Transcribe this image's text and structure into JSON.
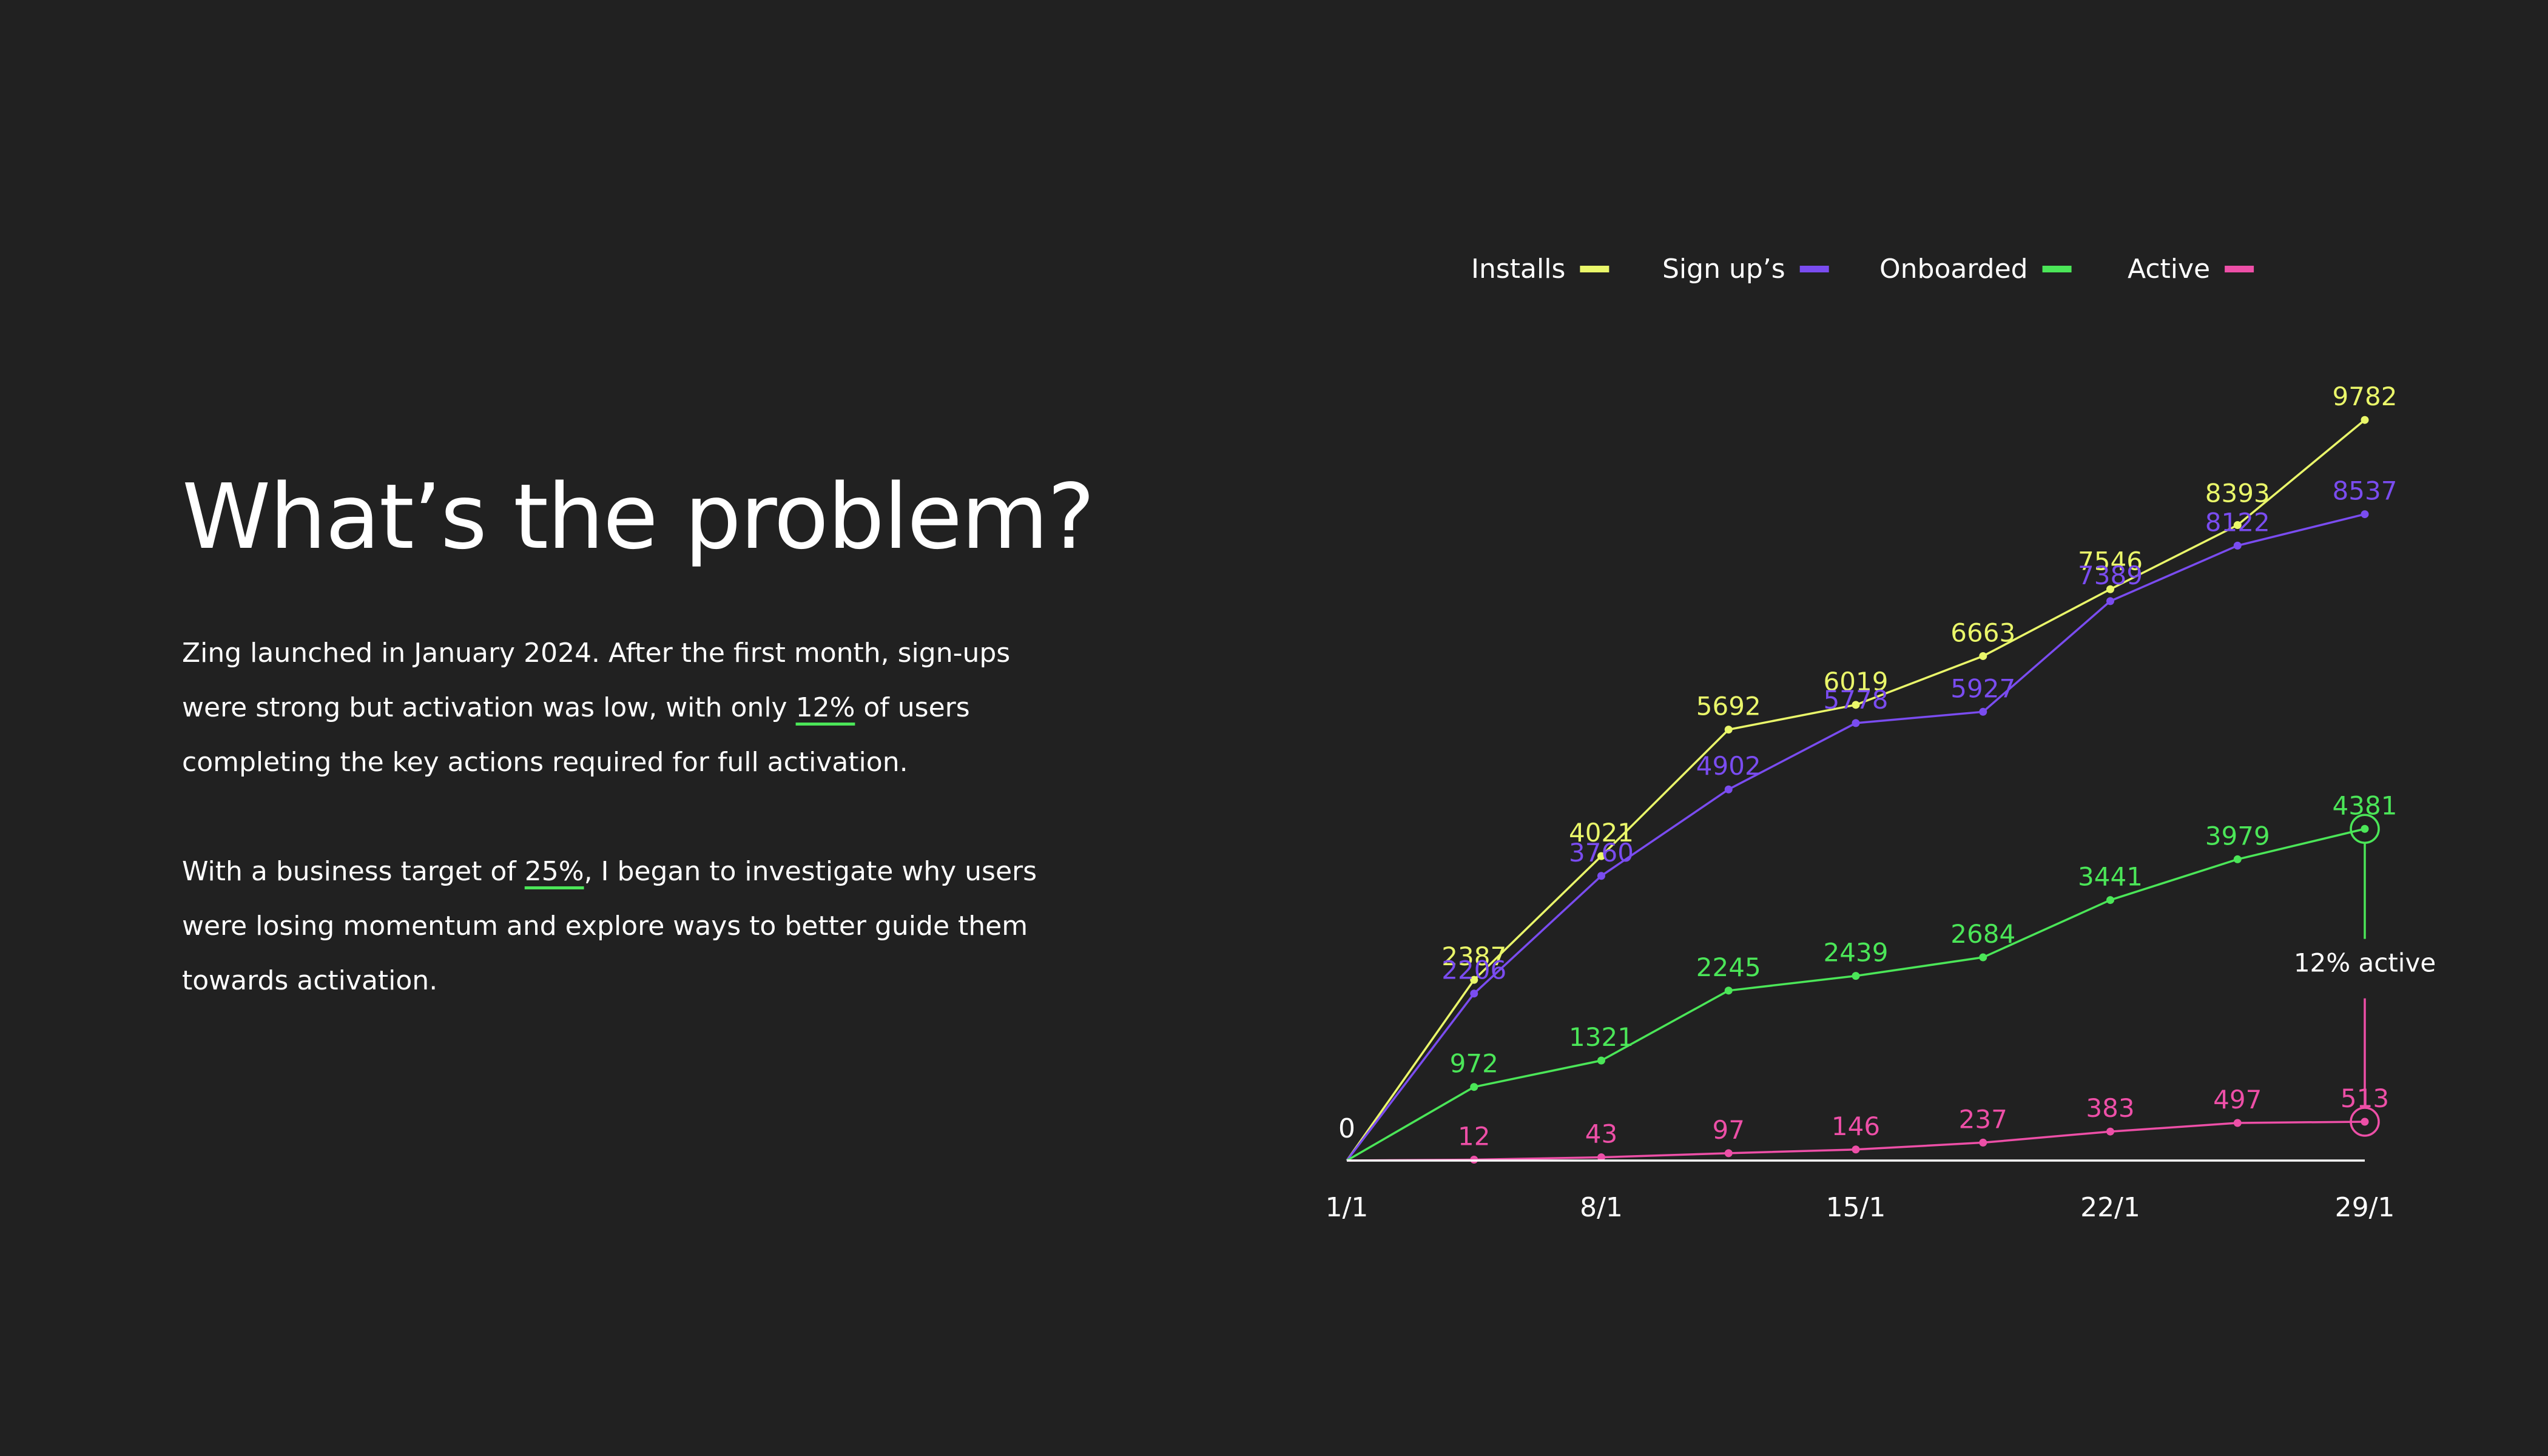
{
  "heading": "What’s the problem?",
  "paragraph1": {
    "before": "Zing launched in January 2024. After the first month, sign-ups were strong but activation was low, with only ",
    "highlight": "12%",
    "after": " of users completing the key actions required for full activation."
  },
  "paragraph2": {
    "before": "With a business target of ",
    "highlight": "25%",
    "after": ", I began to investigate why users were losing momentum and explore ways to better guide them towards activation."
  },
  "chart_data": {
    "type": "line",
    "x": [
      0,
      1,
      2,
      3,
      4,
      5,
      6,
      7,
      8
    ],
    "x_ticks": [
      {
        "index": 0,
        "label": "1/1"
      },
      {
        "index": 2,
        "label": "8/1"
      },
      {
        "index": 4,
        "label": "15/1"
      },
      {
        "index": 6,
        "label": "22/1"
      },
      {
        "index": 8,
        "label": "29/1"
      }
    ],
    "origin_label": "0",
    "ylim": [
      0,
      10000
    ],
    "grid": false,
    "legend_position": "top",
    "series": [
      {
        "name": "Installs",
        "color": "#eaf76a",
        "values": [
          0,
          2387,
          4021,
          5692,
          6019,
          6663,
          7546,
          8393,
          9782
        ]
      },
      {
        "name": "Sign up’s",
        "color": "#7a4cf0",
        "values": [
          0,
          2206,
          3760,
          4902,
          5778,
          5927,
          7389,
          8122,
          8537
        ]
      },
      {
        "name": "Onboarded",
        "color": "#4be658",
        "values": [
          0,
          972,
          1321,
          2245,
          2439,
          2684,
          3441,
          3979,
          4381
        ]
      },
      {
        "name": "Active",
        "color": "#ed4fa7",
        "values": [
          0,
          12,
          43,
          97,
          146,
          237,
          383,
          497,
          513
        ]
      }
    ],
    "annotation": {
      "label": "12% active",
      "index": 8,
      "from_series": "Onboarded",
      "to_series": "Active"
    }
  }
}
